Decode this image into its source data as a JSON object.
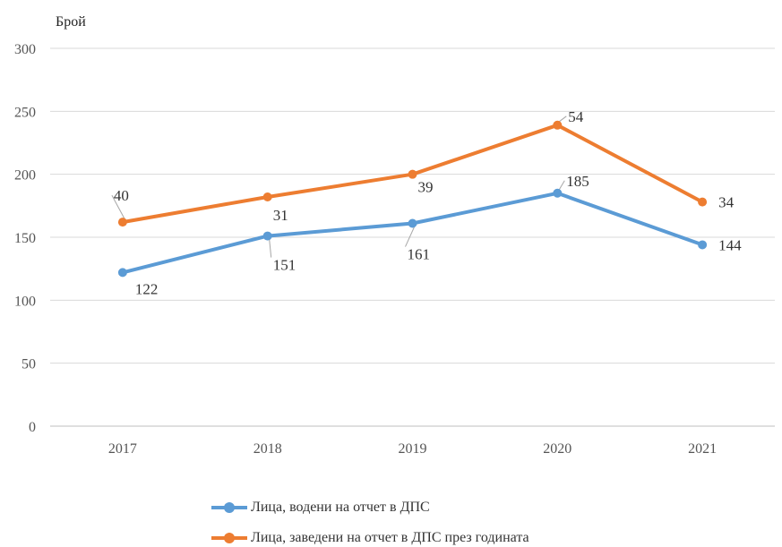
{
  "chart_data": {
    "type": "line",
    "ylabel": "Брой",
    "ylim": [
      0,
      300
    ],
    "yticks": [
      0,
      50,
      100,
      150,
      200,
      250,
      300
    ],
    "categories": [
      "2017",
      "2018",
      "2019",
      "2020",
      "2021"
    ],
    "grid": true,
    "legend_position": "bottom",
    "series": [
      {
        "name": "Лица, водени на отчет в ДПС",
        "values": [
          122,
          151,
          161,
          185,
          144
        ],
        "data_labels": [
          "122",
          "151",
          "161",
          "185",
          "144"
        ],
        "color": "#5b9bd5"
      },
      {
        "name": "Лица, заведени на отчет в ДПС през годината",
        "values": [
          162,
          182,
          200,
          239,
          178
        ],
        "data_labels": [
          "40",
          "31",
          "39",
          "54",
          "34"
        ],
        "color": "#ed7d31"
      }
    ]
  }
}
